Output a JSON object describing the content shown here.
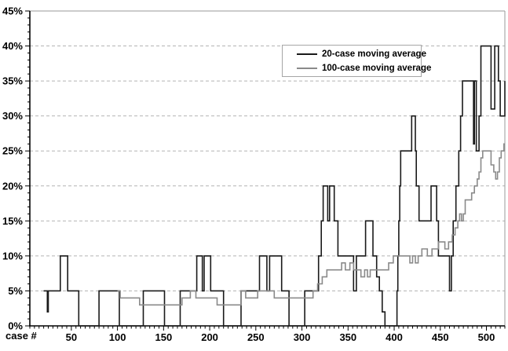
{
  "chart_data": {
    "type": "line",
    "title": "",
    "xlabel": "case #",
    "ylabel": "",
    "x_axis": {
      "min": 5,
      "max": 520,
      "major_ticks": [
        50,
        100,
        150,
        200,
        250,
        300,
        350,
        400,
        450,
        500
      ],
      "tick_labels": [
        "50",
        "100",
        "150",
        "200",
        "250",
        "300",
        "350",
        "400",
        "450",
        "500"
      ],
      "minor_tick_step": 5
    },
    "y_axis": {
      "min": 0,
      "max": 45,
      "major_tick_step": 5,
      "minor_tick_step": 1,
      "tick_labels": [
        "0%",
        "5%",
        "10%",
        "15%",
        "20%",
        "25%",
        "30%",
        "35%",
        "40%",
        "45%"
      ]
    },
    "grid": {
      "horizontal": true,
      "vertical": false,
      "style": "dashed",
      "color": "#b4b4b4"
    },
    "frame_color": "#9a9a9a",
    "axis_color": "#000000",
    "legend": {
      "position": "top-center",
      "entries": [
        {
          "label": "20-case moving average",
          "color": "#1a1a1a"
        },
        {
          "label": "100-case moving average",
          "color": "#8a8a8a"
        }
      ]
    },
    "series": [
      {
        "name": "20-case moving average",
        "color": "#1a1a1a",
        "stroke_width": 1.6,
        "interpolation": "step",
        "points": [
          [
            20,
            5
          ],
          [
            24,
            2
          ],
          [
            25,
            5
          ],
          [
            38,
            10
          ],
          [
            46,
            5
          ],
          [
            58,
            0
          ],
          [
            80,
            5
          ],
          [
            102,
            0
          ],
          [
            128,
            5
          ],
          [
            151,
            0
          ],
          [
            168,
            5
          ],
          [
            186,
            10
          ],
          [
            192,
            5
          ],
          [
            194,
            10
          ],
          [
            201,
            5
          ],
          [
            215,
            0
          ],
          [
            234,
            5
          ],
          [
            254,
            10
          ],
          [
            262,
            5
          ],
          [
            265,
            10
          ],
          [
            278,
            5
          ],
          [
            286,
            0
          ],
          [
            303,
            5
          ],
          [
            318,
            10
          ],
          [
            321,
            15
          ],
          [
            323,
            20
          ],
          [
            328,
            15
          ],
          [
            330,
            20
          ],
          [
            335,
            15
          ],
          [
            339,
            10
          ],
          [
            356,
            5
          ],
          [
            359,
            10
          ],
          [
            369,
            15
          ],
          [
            377,
            10
          ],
          [
            381,
            7
          ],
          [
            384,
            5
          ],
          [
            387,
            2
          ],
          [
            390,
            0
          ],
          [
            403,
            5
          ],
          [
            404,
            10
          ],
          [
            405,
            15
          ],
          [
            406,
            20
          ],
          [
            407,
            25
          ],
          [
            419,
            30
          ],
          [
            423,
            25
          ],
          [
            424,
            20
          ],
          [
            427,
            15
          ],
          [
            440,
            20
          ],
          [
            446,
            15
          ],
          [
            448,
            10
          ],
          [
            460,
            5
          ],
          [
            462,
            10
          ],
          [
            464,
            15
          ],
          [
            467,
            20
          ],
          [
            470,
            25
          ],
          [
            472,
            30
          ],
          [
            474,
            35
          ],
          [
            486,
            26
          ],
          [
            487,
            35
          ],
          [
            489,
            25
          ],
          [
            492,
            30
          ],
          [
            494,
            40
          ],
          [
            505,
            31
          ],
          [
            509,
            40
          ],
          [
            513,
            35
          ],
          [
            515,
            30
          ],
          [
            520,
            35
          ]
        ]
      },
      {
        "name": "100-case moving average",
        "color": "#8a8a8a",
        "stroke_width": 1.6,
        "interpolation": "step",
        "points": [
          [
            100,
            5
          ],
          [
            103,
            4
          ],
          [
            124,
            3
          ],
          [
            170,
            4
          ],
          [
            179,
            5
          ],
          [
            185,
            4
          ],
          [
            208,
            3
          ],
          [
            234,
            5
          ],
          [
            239,
            4
          ],
          [
            252,
            5
          ],
          [
            270,
            4
          ],
          [
            312,
            5
          ],
          [
            317,
            6
          ],
          [
            322,
            7
          ],
          [
            327,
            8
          ],
          [
            343,
            9
          ],
          [
            347,
            8
          ],
          [
            352,
            9
          ],
          [
            356,
            8
          ],
          [
            364,
            7
          ],
          [
            368,
            8
          ],
          [
            371,
            7
          ],
          [
            374,
            8
          ],
          [
            394,
            9
          ],
          [
            399,
            10
          ],
          [
            417,
            9
          ],
          [
            420,
            10
          ],
          [
            423,
            9
          ],
          [
            426,
            10
          ],
          [
            430,
            11
          ],
          [
            436,
            10
          ],
          [
            441,
            11
          ],
          [
            448,
            12
          ],
          [
            455,
            11
          ],
          [
            459,
            12
          ],
          [
            463,
            13
          ],
          [
            466,
            14
          ],
          [
            469,
            15
          ],
          [
            471,
            16
          ],
          [
            473,
            15
          ],
          [
            475,
            16
          ],
          [
            477,
            18
          ],
          [
            484,
            19
          ],
          [
            487,
            20
          ],
          [
            490,
            21
          ],
          [
            492,
            22
          ],
          [
            494,
            24
          ],
          [
            496,
            25
          ],
          [
            505,
            23
          ],
          [
            508,
            22
          ],
          [
            510,
            21
          ],
          [
            512,
            22
          ],
          [
            514,
            24
          ],
          [
            516,
            25
          ],
          [
            519,
            26
          ],
          [
            520,
            26
          ]
        ]
      }
    ]
  }
}
